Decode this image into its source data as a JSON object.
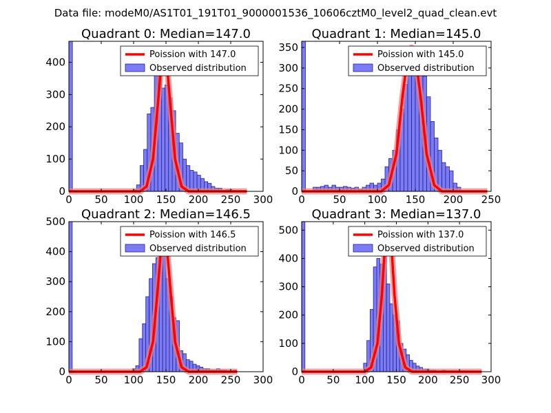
{
  "figure": {
    "suptitle": "Data file: modeM0/AS1T01_191T01_9000001536_10606cztM0_level2_quad_clean.evt",
    "colors": {
      "bar_fill": "#7b7bf5",
      "bar_edge": "#24248a",
      "poisson_line": "#ff0000",
      "poisson_halo": "#f08080",
      "axis": "#000000"
    }
  },
  "chart_data": [
    {
      "type": "bar",
      "title": "Quadrant 0: Median=147.0",
      "median": 147.0,
      "xlim": [
        0,
        300
      ],
      "ylim": [
        0,
        465
      ],
      "xticks": [
        0,
        50,
        100,
        150,
        200,
        250,
        300
      ],
      "yticks": [
        0,
        100,
        200,
        300,
        400
      ],
      "legend": {
        "position": "top-right",
        "line_label": "Poission with 147.0",
        "bar_label": "Observed distribution"
      },
      "series": [
        {
          "name": "Observed distribution",
          "bin_width": 5.5,
          "bin_starts": [
            0,
            99,
            104.5,
            110,
            115.5,
            121,
            126.5,
            132,
            137.5,
            143,
            148.5,
            154,
            159.5,
            165,
            170.5,
            176,
            181.5,
            187,
            192.5,
            198,
            203.5,
            209,
            214.5,
            220,
            225.5,
            231,
            236.5,
            242,
            247.5,
            253
          ],
          "counts": [
            465,
            5,
            20,
            80,
            130,
            240,
            260,
            360,
            370,
            320,
            330,
            290,
            250,
            180,
            150,
            100,
            80,
            65,
            60,
            50,
            40,
            30,
            25,
            15,
            10,
            10,
            3,
            5,
            5,
            3
          ]
        },
        {
          "name": "Poission with 147.0",
          "mean": 147.0,
          "points": [
            [
              0,
              0
            ],
            [
              110,
              0
            ],
            [
              120,
              15
            ],
            [
              130,
              100
            ],
            [
              137,
              260
            ],
            [
              142,
              380
            ],
            [
              147,
              420
            ],
            [
              152,
              380
            ],
            [
              157,
              260
            ],
            [
              164,
              100
            ],
            [
              174,
              15
            ],
            [
              185,
              0
            ],
            [
              275,
              0
            ]
          ]
        }
      ]
    },
    {
      "type": "bar",
      "title": "Quadrant 1: Median=145.0",
      "median": 145.0,
      "xlim": [
        0,
        250
      ],
      "ylim": [
        0,
        365
      ],
      "xticks": [
        0,
        50,
        100,
        150,
        200,
        250
      ],
      "yticks": [
        0,
        50,
        100,
        150,
        200,
        250,
        300,
        350
      ],
      "legend": {
        "position": "top-right",
        "line_label": "Poission with 145.0",
        "bar_label": "Observed distribution"
      },
      "series": [
        {
          "name": "Observed distribution",
          "bin_width": 5,
          "bin_starts": [
            0,
            15,
            20,
            25,
            30,
            35,
            40,
            45,
            50,
            55,
            60,
            65,
            70,
            75,
            80,
            85,
            90,
            95,
            100,
            105,
            110,
            115,
            120,
            125,
            130,
            135,
            140,
            145,
            150,
            155,
            160,
            165,
            170,
            175,
            180,
            185,
            190,
            195,
            200,
            205
          ],
          "counts": [
            365,
            10,
            10,
            12,
            15,
            10,
            15,
            10,
            10,
            12,
            10,
            8,
            10,
            5,
            10,
            15,
            20,
            15,
            20,
            30,
            60,
            80,
            100,
            150,
            200,
            260,
            300,
            340,
            320,
            300,
            280,
            230,
            170,
            130,
            100,
            70,
            60,
            50,
            20,
            10
          ]
        },
        {
          "name": "Poission with 145.0",
          "mean": 145.0,
          "points": [
            [
              0,
              0
            ],
            [
              105,
              0
            ],
            [
              115,
              15
            ],
            [
              125,
              90
            ],
            [
              133,
              230
            ],
            [
              140,
              330
            ],
            [
              145,
              350
            ],
            [
              150,
              330
            ],
            [
              157,
              230
            ],
            [
              165,
              90
            ],
            [
              175,
              15
            ],
            [
              185,
              0
            ],
            [
              245,
              0
            ]
          ]
        }
      ]
    },
    {
      "type": "bar",
      "title": "Quadrant 2: Median=146.5",
      "median": 146.5,
      "xlim": [
        0,
        300
      ],
      "ylim": [
        0,
        500
      ],
      "xticks": [
        0,
        50,
        100,
        150,
        200,
        250,
        300
      ],
      "yticks": [
        0,
        100,
        200,
        300,
        400,
        500
      ],
      "legend": {
        "position": "top-right",
        "line_label": "Poission with 146.5",
        "bar_label": "Observed distribution"
      },
      "series": [
        {
          "name": "Observed distribution",
          "bin_width": 5.2,
          "bin_starts": [
            0,
            98,
            103.2,
            108.4,
            113.6,
            118.8,
            124,
            129.2,
            134.4,
            139.6,
            144.8,
            150,
            155.2,
            160.4,
            165.6,
            170.8,
            176,
            181.2,
            186.4,
            191.6,
            196.8,
            202,
            207.2,
            212.4,
            217.6,
            222.8,
            228,
            233.2,
            238.4,
            243.6,
            248.8,
            254
          ],
          "counts": [
            500,
            10,
            20,
            110,
            160,
            250,
            310,
            360,
            380,
            470,
            400,
            310,
            250,
            180,
            170,
            70,
            60,
            40,
            35,
            25,
            20,
            15,
            10,
            10,
            5,
            5,
            10,
            5,
            5,
            3,
            3,
            5
          ]
        },
        {
          "name": "Poission with 146.5",
          "mean": 146.5,
          "points": [
            [
              0,
              0
            ],
            [
              110,
              0
            ],
            [
              120,
              15
            ],
            [
              130,
              100
            ],
            [
              137,
              270
            ],
            [
              142,
              400
            ],
            [
              147,
              465
            ],
            [
              152,
              400
            ],
            [
              157,
              270
            ],
            [
              164,
              100
            ],
            [
              174,
              15
            ],
            [
              185,
              0
            ],
            [
              260,
              0
            ]
          ]
        }
      ]
    },
    {
      "type": "bar",
      "title": "Quadrant 3: Median=137.0",
      "median": 137.0,
      "xlim": [
        0,
        300
      ],
      "ylim": [
        0,
        530
      ],
      "xticks": [
        0,
        50,
        100,
        150,
        200,
        250,
        300
      ],
      "yticks": [
        0,
        100,
        200,
        300,
        400,
        500
      ],
      "legend": {
        "position": "top-right",
        "line_label": "Poission with 137.0",
        "bar_label": "Observed distribution"
      },
      "series": [
        {
          "name": "Observed distribution",
          "bin_width": 5.2,
          "bin_starts": [
            0,
            98,
            103.2,
            108.4,
            113.6,
            118.8,
            124,
            129.2,
            134.4,
            139.6,
            144.8,
            150,
            155.2,
            160.4,
            165.6,
            170.8,
            176,
            181.2,
            186.4,
            191.6,
            196.8,
            202,
            207.2,
            212.4,
            217.6,
            222.8,
            228,
            233.2,
            238.4,
            243.6,
            248.8,
            254,
            259.2,
            264.4,
            269.6,
            274.8
          ],
          "counts": [
            530,
            30,
            110,
            220,
            370,
            400,
            380,
            420,
            310,
            240,
            200,
            180,
            100,
            80,
            60,
            40,
            30,
            20,
            15,
            10,
            10,
            5,
            5,
            3,
            3,
            5,
            3,
            3,
            3,
            3,
            3,
            3,
            2,
            2,
            2,
            2
          ]
        },
        {
          "name": "Poission with 137.0",
          "mean": 137.0,
          "points": [
            [
              0,
              0
            ],
            [
              100,
              0
            ],
            [
              110,
              15
            ],
            [
              120,
              100
            ],
            [
              127,
              270
            ],
            [
              132,
              450
            ],
            [
              137,
              505
            ],
            [
              142,
              450
            ],
            [
              147,
              270
            ],
            [
              154,
              100
            ],
            [
              164,
              15
            ],
            [
              175,
              0
            ],
            [
              285,
              0
            ]
          ]
        }
      ]
    }
  ]
}
